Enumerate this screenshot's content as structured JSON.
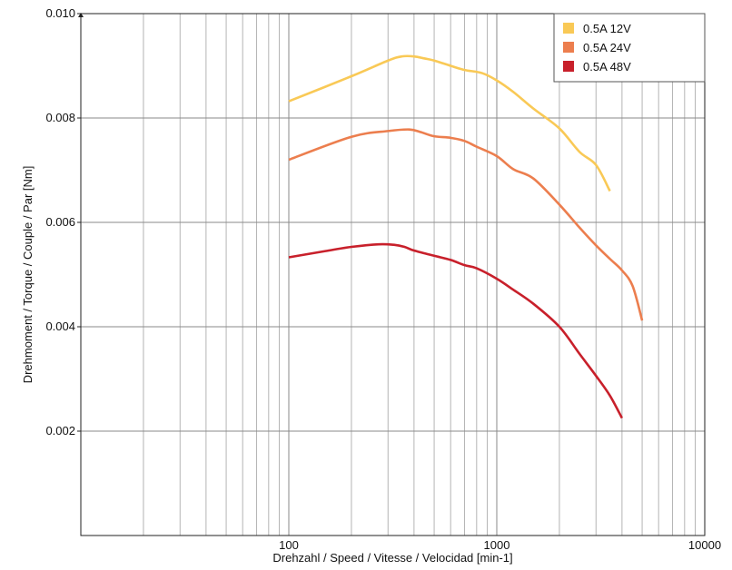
{
  "chart_data": {
    "type": "line",
    "title": "",
    "xlabel": "Drehzahl / Speed / Vitesse / Velocidad [min-1]",
    "ylabel": "Drehmoment / Torque / Couple / Par [Nm]",
    "x_scale": "log",
    "xlim": [
      10,
      10000
    ],
    "ylim": [
      0,
      0.01
    ],
    "grid": true,
    "legend_position": "top-right",
    "x_tick_labels": [
      "100",
      "1000",
      "10000"
    ],
    "x_tick_values": [
      100,
      1000,
      10000
    ],
    "y_tick_labels": [
      "0.002",
      "0.004",
      "0.006",
      "0.008",
      "0.010"
    ],
    "y_tick_values": [
      0.002,
      0.004,
      0.006,
      0.008,
      0.01
    ],
    "series": [
      {
        "name": "0.5A 12V",
        "color": "#f9c956",
        "x": [
          100,
          200,
          300,
          350,
          400,
          450,
          500,
          600,
          700,
          850,
          1000,
          1200,
          1500,
          2000,
          2500,
          3000,
          3500
        ],
        "y": [
          0.00832,
          0.0088,
          0.0091,
          0.00918,
          0.00918,
          0.00914,
          0.0091,
          0.009,
          0.00892,
          0.00886,
          0.00872,
          0.0085,
          0.00818,
          0.0078,
          0.00735,
          0.0071,
          0.0066
        ]
      },
      {
        "name": "0.5A 24V",
        "color": "#ec7e4e",
        "x": [
          100,
          200,
          300,
          380,
          430,
          500,
          600,
          700,
          800,
          1000,
          1200,
          1500,
          2000,
          2500,
          3000,
          3500,
          4000,
          4500,
          5000
        ],
        "y": [
          0.0072,
          0.00764,
          0.00775,
          0.00778,
          0.00773,
          0.00765,
          0.00762,
          0.00756,
          0.00745,
          0.00727,
          0.00702,
          0.00684,
          0.00634,
          0.0059,
          0.00556,
          0.0053,
          0.00508,
          0.00478,
          0.00412
        ]
      },
      {
        "name": "0.5A 48V",
        "color": "#c8202b",
        "x": [
          100,
          150,
          200,
          270,
          320,
          360,
          400,
          500,
          600,
          700,
          800,
          1000,
          1200,
          1500,
          2000,
          2500,
          3000,
          3500,
          4000
        ],
        "y": [
          0.00533,
          0.00545,
          0.00553,
          0.00558,
          0.00557,
          0.00553,
          0.00546,
          0.00536,
          0.00528,
          0.00518,
          0.00512,
          0.00492,
          0.00471,
          0.00444,
          0.004,
          0.00348,
          0.00306,
          0.00268,
          0.00225
        ]
      }
    ]
  }
}
